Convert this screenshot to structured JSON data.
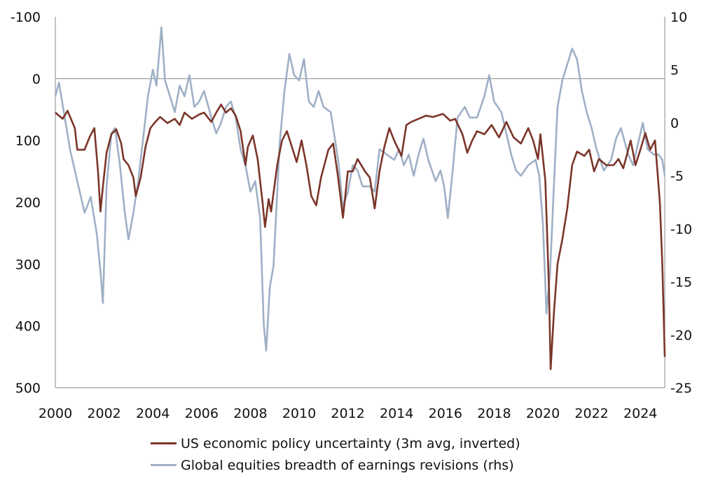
{
  "chart_data": {
    "type": "line",
    "x_ticks": [
      "2000",
      "2002",
      "2004",
      "2006",
      "2008",
      "2010",
      "2012",
      "2014",
      "2016",
      "2018",
      "2020",
      "2022",
      "2024"
    ],
    "xlim": [
      2000,
      2025
    ],
    "y_left": {
      "ticks": [
        "-100",
        "0",
        "100",
        "200",
        "300",
        "400",
        "500"
      ],
      "lim_top": -100,
      "lim_bottom": 500,
      "inverted": true
    },
    "y_right": {
      "ticks": [
        "10",
        "5",
        "0",
        "-5",
        "-10",
        "-15",
        "-20",
        "-25"
      ],
      "lim_top": 10,
      "lim_bottom": -25
    },
    "zero_line_left": 0,
    "grid": false,
    "legend_position": "bottom",
    "series": [
      {
        "name": "US economic policy uncertainty (3m avg, inverted)",
        "axis": "left",
        "color": "#7b3529",
        "points": [
          [
            2000.0,
            55
          ],
          [
            2000.3,
            65
          ],
          [
            2000.5,
            52
          ],
          [
            2000.8,
            80
          ],
          [
            2000.9,
            115
          ],
          [
            2001.2,
            115
          ],
          [
            2001.4,
            95
          ],
          [
            2001.6,
            80
          ],
          [
            2001.75,
            150
          ],
          [
            2001.85,
            215
          ],
          [
            2001.95,
            175
          ],
          [
            2002.1,
            120
          ],
          [
            2002.3,
            90
          ],
          [
            2002.5,
            82
          ],
          [
            2002.7,
            105
          ],
          [
            2002.8,
            130
          ],
          [
            2003.0,
            140
          ],
          [
            2003.2,
            160
          ],
          [
            2003.3,
            190
          ],
          [
            2003.5,
            160
          ],
          [
            2003.7,
            110
          ],
          [
            2003.9,
            80
          ],
          [
            2004.1,
            70
          ],
          [
            2004.3,
            62
          ],
          [
            2004.6,
            72
          ],
          [
            2004.9,
            65
          ],
          [
            2005.1,
            75
          ],
          [
            2005.3,
            55
          ],
          [
            2005.6,
            65
          ],
          [
            2005.9,
            58
          ],
          [
            2006.1,
            55
          ],
          [
            2006.4,
            70
          ],
          [
            2006.6,
            55
          ],
          [
            2006.8,
            42
          ],
          [
            2007.0,
            55
          ],
          [
            2007.2,
            48
          ],
          [
            2007.4,
            60
          ],
          [
            2007.6,
            85
          ],
          [
            2007.8,
            140
          ],
          [
            2007.9,
            110
          ],
          [
            2008.1,
            92
          ],
          [
            2008.3,
            130
          ],
          [
            2008.5,
            200
          ],
          [
            2008.6,
            240
          ],
          [
            2008.75,
            195
          ],
          [
            2008.85,
            215
          ],
          [
            2009.1,
            140
          ],
          [
            2009.3,
            100
          ],
          [
            2009.5,
            85
          ],
          [
            2009.7,
            110
          ],
          [
            2009.9,
            135
          ],
          [
            2010.1,
            100
          ],
          [
            2010.3,
            140
          ],
          [
            2010.5,
            190
          ],
          [
            2010.7,
            205
          ],
          [
            2010.9,
            160
          ],
          [
            2011.2,
            115
          ],
          [
            2011.4,
            105
          ],
          [
            2011.6,
            160
          ],
          [
            2011.8,
            225
          ],
          [
            2012.0,
            150
          ],
          [
            2012.2,
            150
          ],
          [
            2012.4,
            130
          ],
          [
            2012.7,
            150
          ],
          [
            2012.9,
            160
          ],
          [
            2013.1,
            210
          ],
          [
            2013.3,
            150
          ],
          [
            2013.5,
            110
          ],
          [
            2013.7,
            80
          ],
          [
            2013.9,
            100
          ],
          [
            2014.2,
            125
          ],
          [
            2014.4,
            75
          ],
          [
            2014.6,
            70
          ],
          [
            2014.9,
            65
          ],
          [
            2015.2,
            60
          ],
          [
            2015.5,
            62
          ],
          [
            2015.9,
            57
          ],
          [
            2016.2,
            68
          ],
          [
            2016.4,
            65
          ],
          [
            2016.7,
            90
          ],
          [
            2016.9,
            120
          ],
          [
            2017.1,
            100
          ],
          [
            2017.3,
            85
          ],
          [
            2017.6,
            90
          ],
          [
            2017.9,
            75
          ],
          [
            2018.2,
            95
          ],
          [
            2018.5,
            70
          ],
          [
            2018.8,
            95
          ],
          [
            2019.1,
            105
          ],
          [
            2019.4,
            80
          ],
          [
            2019.6,
            100
          ],
          [
            2019.8,
            130
          ],
          [
            2019.9,
            90
          ],
          [
            2020.1,
            165
          ],
          [
            2020.25,
            340
          ],
          [
            2020.32,
            470
          ],
          [
            2020.45,
            380
          ],
          [
            2020.6,
            300
          ],
          [
            2020.8,
            260
          ],
          [
            2021.0,
            210
          ],
          [
            2021.2,
            140
          ],
          [
            2021.4,
            118
          ],
          [
            2021.7,
            125
          ],
          [
            2021.9,
            115
          ],
          [
            2022.1,
            150
          ],
          [
            2022.3,
            130
          ],
          [
            2022.6,
            140
          ],
          [
            2022.9,
            140
          ],
          [
            2023.1,
            130
          ],
          [
            2023.3,
            145
          ],
          [
            2023.6,
            100
          ],
          [
            2023.8,
            140
          ],
          [
            2024.0,
            115
          ],
          [
            2024.2,
            88
          ],
          [
            2024.4,
            115
          ],
          [
            2024.6,
            100
          ],
          [
            2024.8,
            200
          ],
          [
            2024.9,
            300
          ],
          [
            2025.0,
            450
          ]
        ]
      },
      {
        "name": "Global equities breadth of earnings revisions (rhs)",
        "axis": "right",
        "color": "#9fb0c6",
        "points": [
          [
            2000.0,
            2.5
          ],
          [
            2000.15,
            3.8
          ],
          [
            2000.35,
            1.0
          ],
          [
            2000.6,
            -2.5
          ],
          [
            2000.9,
            -5.5
          ],
          [
            2001.2,
            -8.5
          ],
          [
            2001.45,
            -7.0
          ],
          [
            2001.7,
            -10.5
          ],
          [
            2001.85,
            -14.0
          ],
          [
            2001.95,
            -17.0
          ],
          [
            2002.1,
            -6.0
          ],
          [
            2002.3,
            -1.0
          ],
          [
            2002.45,
            -0.5
          ],
          [
            2002.65,
            -4.0
          ],
          [
            2002.85,
            -8.5
          ],
          [
            2003.0,
            -11.0
          ],
          [
            2003.2,
            -8.5
          ],
          [
            2003.4,
            -5.5
          ],
          [
            2003.6,
            -1.5
          ],
          [
            2003.8,
            2.5
          ],
          [
            2004.0,
            5.0
          ],
          [
            2004.15,
            3.5
          ],
          [
            2004.35,
            9.0
          ],
          [
            2004.5,
            4.0
          ],
          [
            2004.7,
            2.5
          ],
          [
            2004.9,
            1.0
          ],
          [
            2005.1,
            3.5
          ],
          [
            2005.3,
            2.5
          ],
          [
            2005.5,
            4.5
          ],
          [
            2005.7,
            1.5
          ],
          [
            2005.9,
            2.0
          ],
          [
            2006.1,
            3.0
          ],
          [
            2006.4,
            0.5
          ],
          [
            2006.6,
            -1.0
          ],
          [
            2006.8,
            0.0
          ],
          [
            2007.0,
            1.5
          ],
          [
            2007.2,
            2.0
          ],
          [
            2007.4,
            0.5
          ],
          [
            2007.6,
            -2.5
          ],
          [
            2007.8,
            -4.0
          ],
          [
            2008.0,
            -6.5
          ],
          [
            2008.2,
            -5.5
          ],
          [
            2008.4,
            -9.0
          ],
          [
            2008.55,
            -19.0
          ],
          [
            2008.65,
            -21.5
          ],
          [
            2008.8,
            -15.5
          ],
          [
            2008.95,
            -13.5
          ],
          [
            2009.2,
            -2.0
          ],
          [
            2009.4,
            3.0
          ],
          [
            2009.6,
            6.5
          ],
          [
            2009.8,
            4.5
          ],
          [
            2010.0,
            4.0
          ],
          [
            2010.2,
            6.0
          ],
          [
            2010.4,
            2.0
          ],
          [
            2010.6,
            1.5
          ],
          [
            2010.8,
            3.0
          ],
          [
            2011.0,
            1.5
          ],
          [
            2011.3,
            1.0
          ],
          [
            2011.6,
            -3.5
          ],
          [
            2011.8,
            -8.0
          ],
          [
            2012.0,
            -6.5
          ],
          [
            2012.2,
            -4.0
          ],
          [
            2012.4,
            -4.5
          ],
          [
            2012.6,
            -6.0
          ],
          [
            2012.9,
            -6.0
          ],
          [
            2013.1,
            -6.5
          ],
          [
            2013.3,
            -2.5
          ],
          [
            2013.6,
            -3.0
          ],
          [
            2013.9,
            -3.5
          ],
          [
            2014.1,
            -2.5
          ],
          [
            2014.3,
            -4.0
          ],
          [
            2014.5,
            -3.0
          ],
          [
            2014.7,
            -5.0
          ],
          [
            2014.9,
            -3.0
          ],
          [
            2015.1,
            -1.5
          ],
          [
            2015.3,
            -3.5
          ],
          [
            2015.6,
            -5.5
          ],
          [
            2015.8,
            -4.5
          ],
          [
            2015.95,
            -6.0
          ],
          [
            2016.1,
            -9.0
          ],
          [
            2016.3,
            -4.5
          ],
          [
            2016.5,
            0.5
          ],
          [
            2016.8,
            1.5
          ],
          [
            2017.0,
            0.5
          ],
          [
            2017.3,
            0.5
          ],
          [
            2017.6,
            2.5
          ],
          [
            2017.8,
            4.5
          ],
          [
            2018.0,
            2.0
          ],
          [
            2018.3,
            1.0
          ],
          [
            2018.5,
            -1.0
          ],
          [
            2018.7,
            -3.0
          ],
          [
            2018.9,
            -4.5
          ],
          [
            2019.1,
            -5.0
          ],
          [
            2019.4,
            -4.0
          ],
          [
            2019.7,
            -3.5
          ],
          [
            2019.85,
            -5.0
          ],
          [
            2020.0,
            -9.5
          ],
          [
            2020.15,
            -18.0
          ],
          [
            2020.3,
            -14.0
          ],
          [
            2020.45,
            -6.0
          ],
          [
            2020.6,
            1.5
          ],
          [
            2020.8,
            4.0
          ],
          [
            2021.0,
            5.5
          ],
          [
            2021.2,
            7.0
          ],
          [
            2021.4,
            6.0
          ],
          [
            2021.6,
            3.0
          ],
          [
            2021.8,
            1.0
          ],
          [
            2022.0,
            -0.5
          ],
          [
            2022.2,
            -2.5
          ],
          [
            2022.5,
            -4.5
          ],
          [
            2022.8,
            -3.5
          ],
          [
            2023.0,
            -1.5
          ],
          [
            2023.2,
            -0.5
          ],
          [
            2023.5,
            -3.0
          ],
          [
            2023.7,
            -4.0
          ],
          [
            2023.9,
            -2.0
          ],
          [
            2024.1,
            0.0
          ],
          [
            2024.3,
            -2.5
          ],
          [
            2024.55,
            -3.0
          ],
          [
            2024.75,
            -3.0
          ],
          [
            2024.9,
            -3.5
          ],
          [
            2025.0,
            -5.0
          ]
        ]
      }
    ]
  }
}
